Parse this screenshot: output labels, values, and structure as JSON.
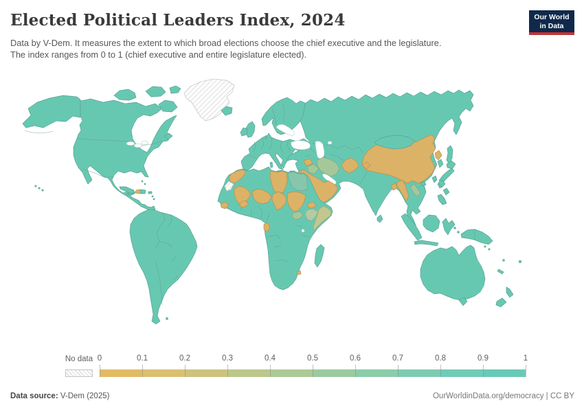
{
  "header": {
    "title": "Elected Political Leaders Index, 2024",
    "subtitle_line1": "Data by V-Dem. It measures the extent to which broad elections choose the chief executive and the legislature.",
    "subtitle_line2": "The index ranges from 0 to 1 (chief executive and entire legislature elected).",
    "logo_line1": "Our World",
    "logo_line2": "in Data"
  },
  "chart_data": {
    "type": "heatmap",
    "subtype": "world-choropleth-map",
    "title": "Elected Political Leaders Index, 2024",
    "scale_domain": [
      0,
      1
    ],
    "legend": {
      "no_data_label": "No data",
      "tick_labels": [
        "0",
        "0.1",
        "0.2",
        "0.3",
        "0.4",
        "0.5",
        "0.6",
        "0.7",
        "0.8",
        "0.9",
        "1"
      ],
      "bin_colors": [
        "#e1bb64",
        "#d9c071",
        "#ccc37e",
        "#bcc78b",
        "#adc996",
        "#9ccaa0",
        "#8cccaa",
        "#7dccb1",
        "#70ccb7",
        "#68cab6"
      ]
    },
    "colors": {
      "high": "#67c8b1",
      "low": "#dcb267",
      "mid": "#a5c89b",
      "mid_light": "#b3cba2",
      "mid_tan": "#c3c78f",
      "muted_high": "#85c6ad",
      "no_data_bg": "#fdfdfd",
      "no_data_stripe": "#d6d6d6",
      "logo_navy": "#10294b",
      "logo_red": "#c23335"
    },
    "regions": {
      "no_data": [
        "Greenland",
        "Western Sahara"
      ],
      "low_index_tan": [
        "Morocco",
        "Libya",
        "Mali",
        "Guinea",
        "Burkina Faso",
        "Niger",
        "Chad",
        "Sudan",
        "Eritrea",
        "Gabon",
        "Eswatini",
        "Haiti",
        "Jordan",
        "Syria",
        "Saudi Arabia",
        "Yemen",
        "Oman",
        "Afghanistan",
        "Tajikistan",
        "China",
        "North Korea",
        "Myanmar",
        "Bangladesh"
      ],
      "mid_index_green": [
        "Iran",
        "Iraq",
        "Laos",
        "South Sudan",
        "Ethiopia",
        "Somalia",
        "Egypt"
      ],
      "high_index_teal": "Americas, Europe, Russia, Central Asia, India, Southeast Asia, Japan, Oceania and most of Sub-Saharan Africa"
    }
  },
  "footer": {
    "source_label": "Data source:",
    "source_value": " V-Dem (2025)",
    "rights": "OurWorldinData.org/democracy | CC BY"
  }
}
